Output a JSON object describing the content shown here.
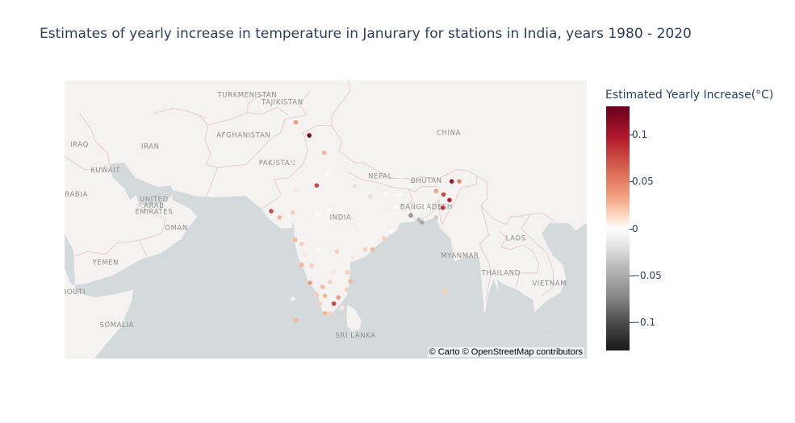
{
  "title": "Estimates of yearly increase in temperature in Janurary for stations in India, years 1980 - 2020",
  "attribution": "© Carto © OpenStreetMap contributors",
  "colorbar": {
    "title": "Estimated Yearly Increase(°C)",
    "range": [
      -0.13,
      0.13
    ],
    "ticks": [
      {
        "value": 0.1,
        "label": "0.1"
      },
      {
        "value": 0.05,
        "label": "0.05"
      },
      {
        "value": 0,
        "label": "0"
      },
      {
        "value": -0.05,
        "label": "−0.05"
      },
      {
        "value": -0.1,
        "label": "−0.1"
      }
    ],
    "colors": {
      "max": "#67001f",
      "mid": "#ffffff",
      "min": "#1a1a1a"
    }
  },
  "map_labels": [
    {
      "text": "TURKMENISTAN",
      "lon": 66.5,
      "lat": 39.6
    },
    {
      "text": "TAJIKISTAN",
      "lon": 71.2,
      "lat": 38.6
    },
    {
      "text": "CHINA",
      "lon": 93.5,
      "lat": 34.2
    },
    {
      "text": "IRAQ",
      "lon": 44.0,
      "lat": 32.5
    },
    {
      "text": "IRAN",
      "lon": 53.5,
      "lat": 32.2
    },
    {
      "text": "AFGHANISTAN",
      "lon": 66.0,
      "lat": 33.8
    },
    {
      "text": "PAKISTAN",
      "lon": 70.5,
      "lat": 29.8
    },
    {
      "text": "KUWAIT",
      "lon": 47.5,
      "lat": 28.8
    },
    {
      "text": "NEPAL",
      "lon": 84.3,
      "lat": 27.9
    },
    {
      "text": "BHUTAN",
      "lon": 90.5,
      "lat": 27.3
    },
    {
      "text": "DI ARABIA",
      "lon": 42.5,
      "lat": 25.3
    },
    {
      "text": "BANGLADESH",
      "lon": 90.5,
      "lat": 23.5
    },
    {
      "text": "UNITED",
      "lon": 54.0,
      "lat": 24.6
    },
    {
      "text": "ARAB",
      "lon": 54.0,
      "lat": 23.7
    },
    {
      "text": "EMIRATES",
      "lon": 54.0,
      "lat": 22.8
    },
    {
      "text": "INDIA",
      "lon": 79.0,
      "lat": 22.0
    },
    {
      "text": "OMAN",
      "lon": 57.0,
      "lat": 20.5
    },
    {
      "text": "LAOS",
      "lon": 102.5,
      "lat": 19.0
    },
    {
      "text": "MYANMAR",
      "lon": 95.0,
      "lat": 16.5
    },
    {
      "text": "YEMEN",
      "lon": 47.5,
      "lat": 15.5
    },
    {
      "text": "THAILAND",
      "lon": 100.5,
      "lat": 14.0
    },
    {
      "text": "VIETNAM",
      "lon": 107.0,
      "lat": 12.5
    },
    {
      "text": "DJIBOUTI",
      "lon": 42.5,
      "lat": 11.3
    },
    {
      "text": "SOMALIA",
      "lon": 49.0,
      "lat": 6.5
    },
    {
      "text": "SRI LANKA",
      "lon": 81.0,
      "lat": 5.0
    }
  ],
  "map_view": {
    "lon_range": [
      42.0,
      112.0
    ],
    "lat_range": [
      2.0,
      42.0
    ],
    "land_color": "#f4f3f1",
    "water_color": "#d4dadc",
    "border_color": "#e6c9c9"
  },
  "stations": [
    {
      "lon": 74.8,
      "lat": 34.1,
      "value": 0.13
    },
    {
      "lon": 73.0,
      "lat": 36.0,
      "value": 0.04
    },
    {
      "lon": 76.8,
      "lat": 31.6,
      "value": 0.03
    },
    {
      "lon": 72.5,
      "lat": 30.2,
      "value": 0.0
    },
    {
      "lon": 79.5,
      "lat": 29.6,
      "value": -0.01
    },
    {
      "lon": 77.2,
      "lat": 28.6,
      "value": 0.0
    },
    {
      "lon": 73.0,
      "lat": 26.3,
      "value": 0.01
    },
    {
      "lon": 75.8,
      "lat": 26.9,
      "value": 0.08
    },
    {
      "lon": 80.9,
      "lat": 26.8,
      "value": -0.02
    },
    {
      "lon": 83.0,
      "lat": 25.3,
      "value": -0.02
    },
    {
      "lon": 84.0,
      "lat": 26.7,
      "value": -0.01
    },
    {
      "lon": 85.1,
      "lat": 25.6,
      "value": 0.0
    },
    {
      "lon": 87.0,
      "lat": 25.6,
      "value": 0.0
    },
    {
      "lon": 88.4,
      "lat": 22.6,
      "value": -0.06
    },
    {
      "lon": 89.5,
      "lat": 22.0,
      "value": -0.04
    },
    {
      "lon": 90.4,
      "lat": 23.7,
      "value": 0.0
    },
    {
      "lon": 91.8,
      "lat": 26.1,
      "value": 0.04
    },
    {
      "lon": 92.8,
      "lat": 25.6,
      "value": 0.08
    },
    {
      "lon": 93.6,
      "lat": 24.8,
      "value": 0.1
    },
    {
      "lon": 93.9,
      "lat": 27.5,
      "value": 0.11
    },
    {
      "lon": 94.9,
      "lat": 27.5,
      "value": 0.05
    },
    {
      "lon": 92.7,
      "lat": 23.7,
      "value": 0.09
    },
    {
      "lon": 69.7,
      "lat": 23.2,
      "value": 0.08
    },
    {
      "lon": 70.8,
      "lat": 22.3,
      "value": 0.03
    },
    {
      "lon": 72.6,
      "lat": 23.0,
      "value": 0.02
    },
    {
      "lon": 75.9,
      "lat": 22.7,
      "value": 0.0
    },
    {
      "lon": 77.4,
      "lat": 23.3,
      "value": 0.0
    },
    {
      "lon": 79.9,
      "lat": 23.2,
      "value": -0.01
    },
    {
      "lon": 81.6,
      "lat": 21.3,
      "value": 0.0
    },
    {
      "lon": 79.1,
      "lat": 21.1,
      "value": -0.01
    },
    {
      "lon": 73.8,
      "lat": 18.5,
      "value": 0.02
    },
    {
      "lon": 72.9,
      "lat": 19.1,
      "value": 0.03
    },
    {
      "lon": 74.2,
      "lat": 17.0,
      "value": 0.01
    },
    {
      "lon": 75.9,
      "lat": 17.7,
      "value": 0.0
    },
    {
      "lon": 78.5,
      "lat": 17.4,
      "value": 0.02
    },
    {
      "lon": 80.6,
      "lat": 16.5,
      "value": 0.01
    },
    {
      "lon": 82.3,
      "lat": 17.7,
      "value": 0.02
    },
    {
      "lon": 83.3,
      "lat": 17.7,
      "value": 0.03
    },
    {
      "lon": 84.8,
      "lat": 19.3,
      "value": 0.02
    },
    {
      "lon": 85.8,
      "lat": 20.3,
      "value": 0.0
    },
    {
      "lon": 73.8,
      "lat": 15.5,
      "value": 0.03
    },
    {
      "lon": 74.9,
      "lat": 12.9,
      "value": 0.04
    },
    {
      "lon": 75.1,
      "lat": 15.4,
      "value": 0.02
    },
    {
      "lon": 77.6,
      "lat": 13.0,
      "value": 0.02
    },
    {
      "lon": 76.6,
      "lat": 12.3,
      "value": 0.03
    },
    {
      "lon": 78.1,
      "lat": 14.5,
      "value": 0.01
    },
    {
      "lon": 79.9,
      "lat": 14.4,
      "value": 0.02
    },
    {
      "lon": 80.3,
      "lat": 13.1,
      "value": 0.03
    },
    {
      "lon": 78.7,
      "lat": 10.8,
      "value": 0.04
    },
    {
      "lon": 79.8,
      "lat": 11.9,
      "value": 0.02
    },
    {
      "lon": 76.9,
      "lat": 11.0,
      "value": 0.03
    },
    {
      "lon": 75.8,
      "lat": 11.2,
      "value": 0.02
    },
    {
      "lon": 76.2,
      "lat": 9.9,
      "value": 0.02
    },
    {
      "lon": 78.1,
      "lat": 9.9,
      "value": 0.08
    },
    {
      "lon": 77.5,
      "lat": 8.5,
      "value": 0.02
    },
    {
      "lon": 76.9,
      "lat": 8.5,
      "value": 0.03
    },
    {
      "lon": 79.2,
      "lat": 9.3,
      "value": 0.01
    },
    {
      "lon": 72.6,
      "lat": 10.6,
      "value": -0.01
    },
    {
      "lon": 73.0,
      "lat": 7.5,
      "value": 0.03
    },
    {
      "lon": 93.0,
      "lat": 11.6,
      "value": 0.02
    },
    {
      "lon": 85.3,
      "lat": 23.3,
      "value": -0.01
    },
    {
      "lon": 86.4,
      "lat": 23.8,
      "value": 0.0
    },
    {
      "lon": 88.6,
      "lat": 24.3,
      "value": -0.02
    },
    {
      "lon": 89.9,
      "lat": 21.6,
      "value": -0.05
    },
    {
      "lon": 91.8,
      "lat": 22.3,
      "value": -0.03
    },
    {
      "lon": 88.3,
      "lat": 27.0,
      "value": 0.0
    },
    {
      "lon": 87.2,
      "lat": 28.1,
      "value": 0.0
    }
  ]
}
